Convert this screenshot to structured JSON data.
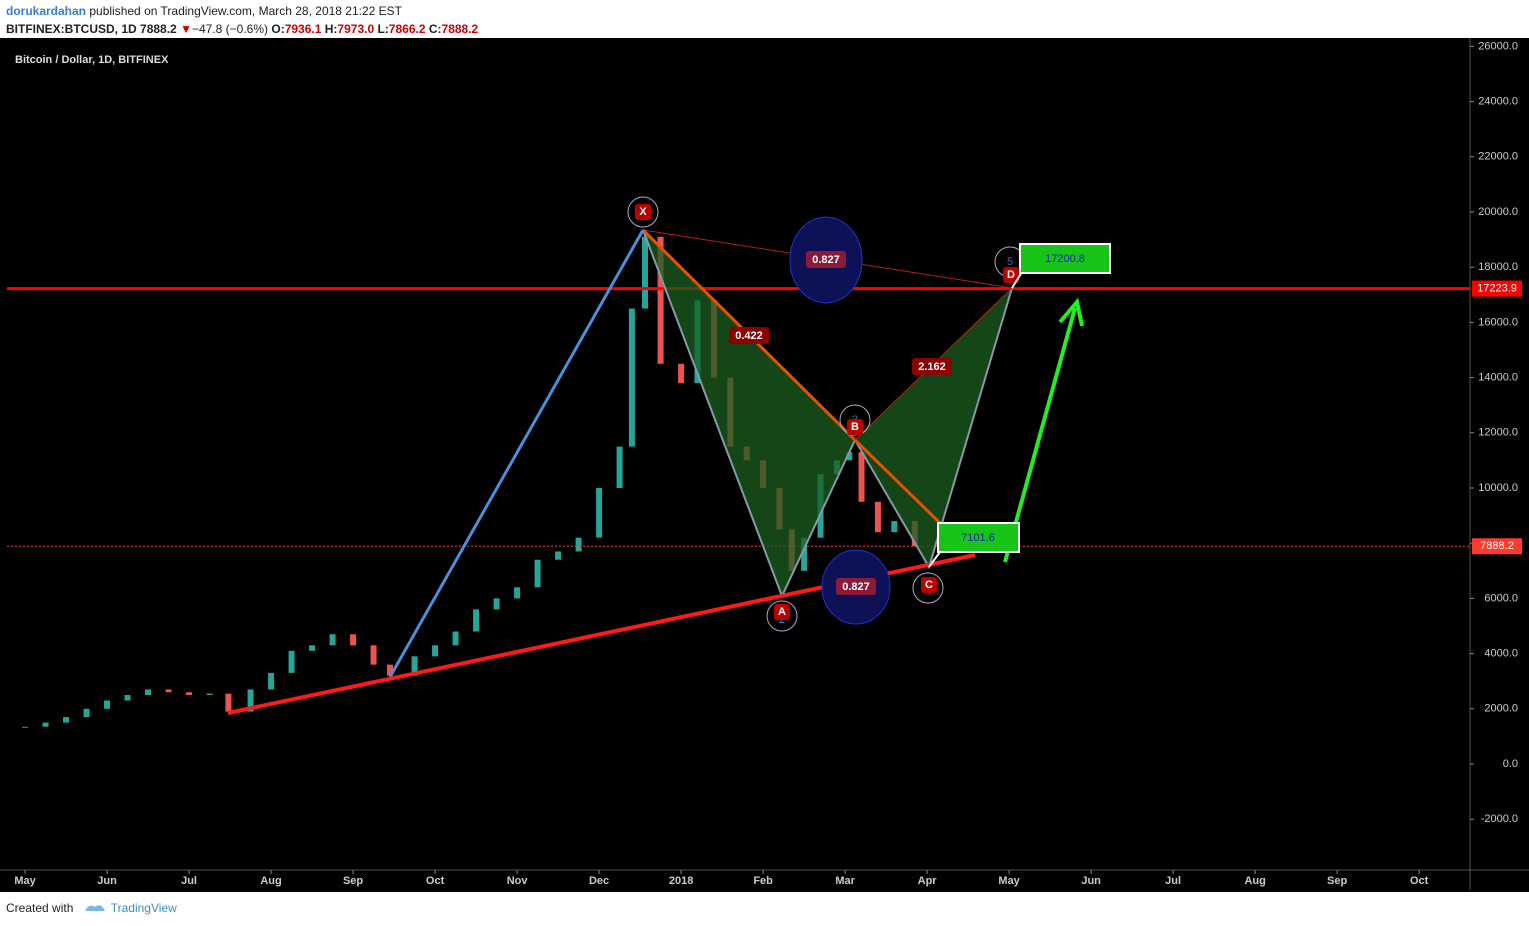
{
  "header": {
    "author": "dorukardahan",
    "published": "published on TradingView.com, March 28, 2018 21:22 EST",
    "symbol": "BITFINEX:BTCUSD, 1D",
    "last": "7888.2",
    "arrow": "▼",
    "change": "−47.8 (−0.6%)",
    "o_label": "O:",
    "o": "7936.1",
    "h_label": "H:",
    "h": "7973.0",
    "l_label": "L:",
    "l": "7866.2",
    "c_label": "C:",
    "c": "7888.2"
  },
  "chart_data": {
    "type": "candlestick",
    "title": "Bitcoin / Dollar, 1D, BITFINEX",
    "up_color": "#26a69a",
    "down_color": "#ef5350",
    "x": [
      0,
      0.25,
      0.5,
      0.75,
      1,
      1.25,
      1.5,
      1.75,
      2,
      2.25,
      2.48,
      2.75,
      3,
      3.25,
      3.5,
      3.75,
      4,
      4.25,
      4.45,
      4.75,
      5,
      5.25,
      5.5,
      5.75,
      6,
      6.25,
      6.5,
      6.75,
      7,
      7.25,
      7.4,
      7.56,
      7.75,
      8,
      8.2,
      8.4,
      8.6,
      8.8,
      9,
      9.2,
      9.35,
      9.5,
      9.7,
      9.9,
      10.05,
      10.2,
      10.4,
      10.6,
      10.85
    ],
    "values": [
      1350,
      1500,
      1700,
      2000,
      2300,
      2500,
      2700,
      2600,
      2500,
      2550,
      1900,
      2700,
      3300,
      4100,
      4300,
      4700,
      4300,
      3600,
      3200,
      3900,
      4300,
      4800,
      5600,
      6000,
      6400,
      7400,
      7700,
      8200,
      10000,
      11500,
      16500,
      19100,
      14500,
      13800,
      16800,
      14000,
      11500,
      11000,
      10000,
      8500,
      7000,
      8200,
      10500,
      11000,
      11300,
      9500,
      8400,
      8800,
      7888.2
    ],
    "xlim": [
      -0.22,
      17.62
    ],
    "xticks": [
      {
        "value": 0,
        "label": "May"
      },
      {
        "value": 1,
        "label": "Jun"
      },
      {
        "value": 2,
        "label": "Jul"
      },
      {
        "value": 3,
        "label": "Aug"
      },
      {
        "value": 4,
        "label": "Sep"
      },
      {
        "value": 5,
        "label": "Oct"
      },
      {
        "value": 6,
        "label": "Nov"
      },
      {
        "value": 7,
        "label": "Dec"
      },
      {
        "value": 8,
        "label": "2018"
      },
      {
        "value": 9,
        "label": "Feb"
      },
      {
        "value": 10,
        "label": "Mar"
      },
      {
        "value": 11,
        "label": "Apr"
      },
      {
        "value": 12,
        "label": "May"
      },
      {
        "value": 13,
        "label": "Jun"
      },
      {
        "value": 14,
        "label": "Jul"
      },
      {
        "value": 15,
        "label": "Aug"
      },
      {
        "value": 16,
        "label": "Sep"
      },
      {
        "value": 17,
        "label": "Oct"
      }
    ],
    "ylim": [
      -3840,
      26230
    ],
    "yticks": [
      {
        "value": -2000,
        "label": "-2000.0"
      },
      {
        "value": 0,
        "label": "0.0"
      },
      {
        "value": 2000,
        "label": "2000.0"
      },
      {
        "value": 4000,
        "label": "4000.0"
      },
      {
        "value": 6000,
        "label": "6000.0"
      },
      {
        "value": 8000,
        "label": "8000.0"
      },
      {
        "value": 10000,
        "label": "10000.0"
      },
      {
        "value": 12000,
        "label": "12000.0"
      },
      {
        "value": 14000,
        "label": "14000.0"
      },
      {
        "value": 16000,
        "label": "16000.0"
      },
      {
        "value": 18000,
        "label": "18000.0"
      },
      {
        "value": 20000,
        "label": "20000.0"
      },
      {
        "value": 22000,
        "label": "22000.0"
      },
      {
        "value": 24000,
        "label": "24000.0"
      },
      {
        "value": 26000,
        "label": "26000.0"
      }
    ],
    "price_lines": [
      {
        "value": 17223.9,
        "color": "#ff0000"
      },
      {
        "value": 7888.2,
        "color": "#ff3b30"
      }
    ]
  },
  "annotations": {
    "ratio_xd": "0.827",
    "ratio_xb": "0.422",
    "ratio_bd": "2.162",
    "ratio_ac": "0.827",
    "points": [
      "X",
      "A",
      "B",
      "C",
      "D"
    ],
    "waves": [
      "2",
      "3",
      "4",
      "5"
    ],
    "target_high": "17200.8",
    "target_low": "7101.6"
  },
  "footer": {
    "created": "Created with",
    "brand": "TradingView"
  }
}
